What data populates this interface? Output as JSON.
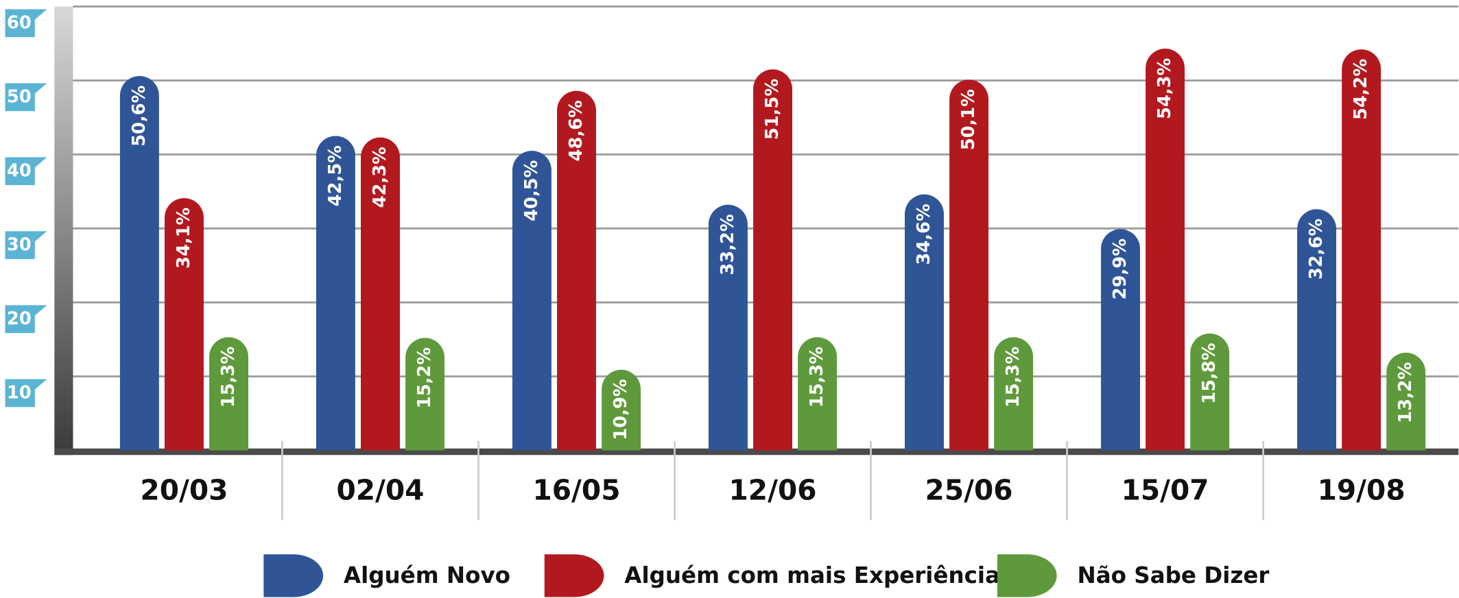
{
  "chart_data": {
    "type": "bar",
    "categories": [
      "20/03",
      "02/04",
      "16/05",
      "12/06",
      "25/06",
      "15/07",
      "19/08"
    ],
    "series": [
      {
        "name": "Alguém Novo",
        "color": "#2f5597",
        "values": [
          50.6,
          42.5,
          40.5,
          33.2,
          34.6,
          29.9,
          32.6
        ],
        "value_labels": [
          "50,6%",
          "42,5%",
          "40,5%",
          "33,2%",
          "34,6%",
          "29,9%",
          "32,6%"
        ]
      },
      {
        "name": "Alguém com mais Experiência",
        "color": "#b2191f",
        "values": [
          34.1,
          42.3,
          48.6,
          51.5,
          50.1,
          54.3,
          54.2
        ],
        "value_labels": [
          "34,1%",
          "42,3%",
          "48,6%",
          "51,5%",
          "50,1%",
          "54,3%",
          "54,2%"
        ]
      },
      {
        "name": "Não Sabe Dizer",
        "color": "#5e9a3c",
        "values": [
          15.3,
          15.2,
          10.9,
          15.3,
          15.3,
          15.8,
          13.2
        ],
        "value_labels": [
          "15,3%",
          "15,2%",
          "10,9%",
          "15,3%",
          "15,3%",
          "15,8%",
          "13,2%"
        ]
      }
    ],
    "ylim": [
      0,
      60
    ],
    "yticks": [
      10,
      20,
      30,
      40,
      50,
      60
    ],
    "grid": true
  }
}
